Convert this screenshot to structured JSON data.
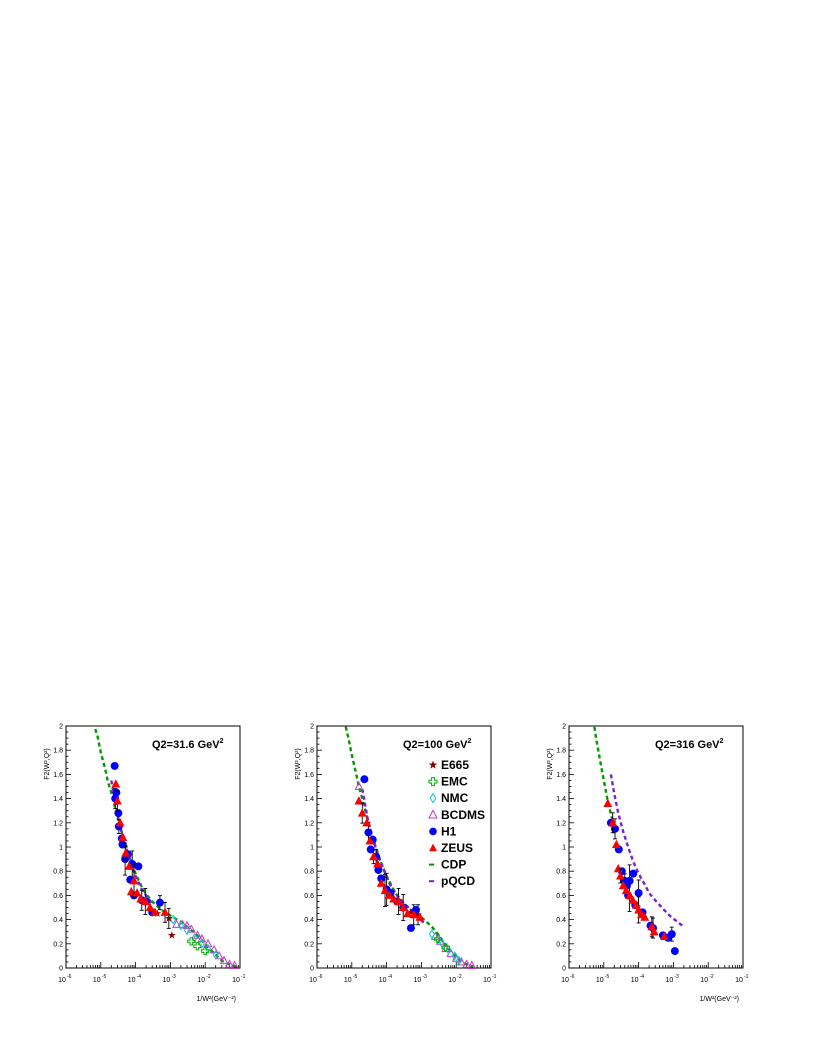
{
  "chart_data": [
    {
      "type": "scatter",
      "title": "Q2=31.6 GeV",
      "title_sup": "2",
      "ylabel": "F2(W²,Q²)",
      "xlabel": "1/W²(GeV⁻²)",
      "x_scale": "log",
      "xlim": [
        1e-06,
        0.1
      ],
      "ylim": [
        0,
        2
      ],
      "y_ticks": [
        "0",
        "0.2",
        "0.4",
        "0.6",
        "0.8",
        "1",
        "1.2",
        "1.4",
        "1.6",
        "1.8",
        "2"
      ],
      "x_ticks": [
        "10-6",
        "10-5",
        "10-4",
        "10-3",
        "10-2",
        "10-1"
      ],
      "series": [
        {
          "name": "H1",
          "marker": "circle",
          "color": "#0000ff",
          "points": [
            [
              2.5e-05,
              1.67
            ],
            [
              2.6e-05,
              1.4
            ],
            [
              2.8e-05,
              1.45
            ],
            [
              3.2e-05,
              1.28
            ],
            [
              3.3e-05,
              1.17
            ],
            [
              4e-05,
              1.07
            ],
            [
              4.2e-05,
              1.02
            ],
            [
              5e-05,
              0.9
            ],
            [
              6e-05,
              0.94
            ],
            [
              7e-05,
              0.73
            ],
            [
              8e-05,
              0.86
            ],
            [
              0.00012,
              0.84
            ],
            [
              9e-05,
              0.6
            ],
            [
              0.00015,
              0.56
            ],
            [
              0.0002,
              0.55
            ],
            [
              0.0003,
              0.46
            ],
            [
              0.0005,
              0.54
            ]
          ]
        },
        {
          "name": "ZEUS",
          "marker": "triangle",
          "color": "#ff0000",
          "points": [
            [
              2.7e-05,
              1.52
            ],
            [
              3e-05,
              1.38
            ],
            [
              3.6e-05,
              1.2
            ],
            [
              4.3e-05,
              1.08
            ],
            [
              5.2e-05,
              0.95
            ],
            [
              6.5e-05,
              0.84
            ],
            [
              7.5e-05,
              0.63
            ],
            [
              9e-05,
              0.72
            ],
            [
              0.00011,
              0.62
            ],
            [
              0.00014,
              0.57
            ],
            [
              0.00019,
              0.55
            ],
            [
              0.00026,
              0.5
            ],
            [
              0.00036,
              0.46
            ],
            [
              0.0007,
              0.46
            ]
          ]
        },
        {
          "name": "E665",
          "marker": "star",
          "color": "#8b0000",
          "points": [
            [
              0.00042,
              0.45
            ],
            [
              0.0009,
              0.41
            ],
            [
              0.0011,
              0.27
            ]
          ]
        },
        {
          "name": "EMC",
          "marker": "cross",
          "color": "#00aa00",
          "points": [
            [
              0.004,
              0.22
            ],
            [
              0.006,
              0.18
            ],
            [
              0.01,
              0.14
            ]
          ]
        },
        {
          "name": "NMC",
          "marker": "diamond",
          "color": "#00cccc",
          "points": [
            [
              0.0012,
              0.4
            ],
            [
              0.002,
              0.35
            ],
            [
              0.003,
              0.31
            ],
            [
              0.005,
              0.25
            ],
            [
              0.008,
              0.2
            ],
            [
              0.012,
              0.16
            ],
            [
              0.02,
              0.11
            ]
          ]
        },
        {
          "name": "BCDMS",
          "marker": "open-triangle",
          "color": "#cc33cc",
          "points": [
            [
              0.0015,
              0.36
            ],
            [
              0.0022,
              0.36
            ],
            [
              0.003,
              0.35
            ],
            [
              0.004,
              0.32
            ],
            [
              0.006,
              0.27
            ],
            [
              0.008,
              0.24
            ],
            [
              0.012,
              0.2
            ],
            [
              0.018,
              0.15
            ],
            [
              0.025,
              0.1
            ],
            [
              0.035,
              0.06
            ],
            [
              0.05,
              0.03
            ],
            [
              0.07,
              0.02
            ]
          ]
        }
      ],
      "cdp_curve": {
        "x": [
          6e-06,
          8e-06,
          1e-05,
          1.3e-05,
          1.6e-05,
          2e-05,
          2.6e-05,
          3.5e-05,
          5e-05,
          7e-05,
          0.0001,
          0.00015,
          0.0002,
          0.0003,
          0.0005,
          0.0008,
          0.0012,
          0.002,
          0.003,
          0.005,
          0.008,
          0.012,
          0.02,
          0.03,
          0.05,
          0.08
        ],
        "y": [
          2.03,
          1.92,
          1.78,
          1.66,
          1.54,
          1.45,
          1.32,
          1.18,
          1.03,
          0.9,
          0.78,
          0.67,
          0.61,
          0.55,
          0.49,
          0.45,
          0.42,
          0.38,
          0.34,
          0.29,
          0.23,
          0.17,
          0.11,
          0.06,
          0.03,
          0.01
        ]
      },
      "pqcd_curve": {
        "x": [
          2e-05,
          2.5e-05,
          3.5e-05,
          5e-05,
          7e-05,
          0.0001,
          0.00015,
          0.0002,
          0.0003
        ],
        "y": [
          1.55,
          1.4,
          1.18,
          1.02,
          0.88,
          0.76,
          0.65,
          0.6,
          0.53
        ]
      }
    },
    {
      "type": "scatter",
      "title": "Q2=100 GeV",
      "title_sup": "2",
      "ylabel": "F2(W²,Q²)",
      "xlabel": "",
      "x_scale": "log",
      "xlim": [
        1e-06,
        0.1
      ],
      "ylim": [
        0,
        2
      ],
      "y_ticks": [
        "0",
        "0.2",
        "0.4",
        "0.6",
        "0.8",
        "1",
        "1.2",
        "1.4",
        "1.6",
        "1.8",
        "2"
      ],
      "x_ticks": [
        "10-6",
        "10-5",
        "10-4",
        "10-3",
        "10-2",
        "10-1"
      ],
      "series": [
        {
          "name": "H1",
          "marker": "circle",
          "color": "#0000ff",
          "points": [
            [
              2.3e-05,
              1.56
            ],
            [
              3e-05,
              1.12
            ],
            [
              3.5e-05,
              0.98
            ],
            [
              4e-05,
              1.06
            ],
            [
              5e-05,
              0.92
            ],
            [
              5.8e-05,
              0.81
            ],
            [
              7e-05,
              0.74
            ],
            [
              0.0001,
              0.65
            ],
            [
              0.00013,
              0.62
            ],
            [
              0.0002,
              0.55
            ],
            [
              0.0003,
              0.5
            ],
            [
              0.0005,
              0.33
            ],
            [
              0.0007,
              0.48
            ]
          ]
        },
        {
          "name": "ZEUS",
          "marker": "triangle",
          "color": "#ff0000",
          "points": [
            [
              1.6e-05,
              1.38
            ],
            [
              2e-05,
              1.28
            ],
            [
              2.7e-05,
              1.2
            ],
            [
              3.3e-05,
              1.05
            ],
            [
              4.2e-05,
              0.92
            ],
            [
              5.5e-05,
              0.86
            ],
            [
              7e-05,
              0.7
            ],
            [
              9e-05,
              0.64
            ],
            [
              0.00012,
              0.6
            ],
            [
              0.00016,
              0.57
            ],
            [
              0.00022,
              0.55
            ],
            [
              0.0003,
              0.5
            ],
            [
              0.0004,
              0.45
            ],
            [
              0.0006,
              0.44
            ],
            [
              0.0009,
              0.42
            ]
          ]
        },
        {
          "name": "E665",
          "marker": "star",
          "color": "#8b0000",
          "points": [
            [
              0.0005,
              0.46
            ],
            [
              0.0008,
              0.44
            ]
          ]
        },
        {
          "name": "EMC",
          "marker": "cross",
          "color": "#00aa00",
          "points": [
            [
              0.003,
              0.24
            ],
            [
              0.005,
              0.17
            ]
          ]
        },
        {
          "name": "NMC",
          "marker": "diamond",
          "color": "#00cccc",
          "points": [
            [
              0.002,
              0.28
            ],
            [
              0.003,
              0.24
            ],
            [
              0.004,
              0.2
            ],
            [
              0.006,
              0.15
            ],
            [
              0.009,
              0.1
            ],
            [
              0.012,
              0.06
            ]
          ]
        },
        {
          "name": "BCDMS",
          "marker": "open-triangle",
          "color": "#cc33cc",
          "points": [
            [
              1.6e-05,
              1.5
            ],
            [
              0.0025,
              0.26
            ],
            [
              0.0035,
              0.22
            ],
            [
              0.005,
              0.16
            ],
            [
              0.007,
              0.12
            ],
            [
              0.01,
              0.08
            ],
            [
              0.014,
              0.05
            ],
            [
              0.02,
              0.03
            ],
            [
              0.028,
              0.02
            ]
          ]
        }
      ],
      "cdp_curve": {
        "x": [
          6e-06,
          8e-06,
          1e-05,
          1.3e-05,
          1.6e-05,
          2e-05,
          2.6e-05,
          3.5e-05,
          5e-05,
          7e-05,
          0.0001,
          0.00015,
          0.0002,
          0.0003,
          0.0005,
          0.0008,
          0.0012,
          0.002,
          0.003,
          0.005,
          0.008,
          0.012,
          0.02,
          0.03
        ],
        "y": [
          2.05,
          1.9,
          1.76,
          1.62,
          1.5,
          1.4,
          1.27,
          1.13,
          0.99,
          0.87,
          0.76,
          0.66,
          0.6,
          0.54,
          0.48,
          0.44,
          0.4,
          0.34,
          0.28,
          0.19,
          0.12,
          0.07,
          0.03,
          0.01
        ]
      },
      "pqcd_curve": {
        "x": [
          2e-05,
          3e-05,
          5e-05,
          8e-05,
          0.00012,
          0.0002,
          0.0003,
          0.0005,
          0.0008,
          0.0012
        ],
        "y": [
          1.48,
          1.2,
          0.98,
          0.82,
          0.7,
          0.6,
          0.54,
          0.48,
          0.42,
          0.37
        ]
      },
      "legend": {
        "placement": "inside-right",
        "entries": [
          {
            "label": "E665",
            "marker": "star",
            "color": "#8b0000"
          },
          {
            "label": "EMC",
            "marker": "cross",
            "color": "#00aa00"
          },
          {
            "label": "NMC",
            "marker": "diamond",
            "color": "#00cccc"
          },
          {
            "label": "BCDMS",
            "marker": "open-triangle",
            "color": "#cc33cc"
          },
          {
            "label": "H1",
            "marker": "circle",
            "color": "#0000ff"
          },
          {
            "label": "ZEUS",
            "marker": "triangle",
            "color": "#ff0000"
          },
          {
            "label": "CDP",
            "marker": "dash",
            "color": "#009900"
          },
          {
            "label": "pQCD",
            "marker": "dash",
            "color": "#7722cc"
          }
        ]
      }
    },
    {
      "type": "scatter",
      "title": "Q2=316 GeV",
      "title_sup": "2",
      "ylabel": "F2(W²,Q²)",
      "xlabel": "1/W²(GeV⁻²)",
      "x_scale": "log",
      "xlim": [
        1e-06,
        0.1
      ],
      "ylim": [
        0,
        2
      ],
      "y_ticks": [
        "0",
        "0.2",
        "0.4",
        "0.6",
        "0.8",
        "1",
        "1.2",
        "1.4",
        "1.6",
        "1.8",
        "2"
      ],
      "x_ticks": [
        "10-6",
        "10-5",
        "10-4",
        "10-3",
        "10-2",
        "10-1"
      ],
      "series": [
        {
          "name": "H1",
          "marker": "circle",
          "color": "#0000ff",
          "points": [
            [
              1.6e-05,
              1.2
            ],
            [
              2.1e-05,
              1.15
            ],
            [
              2.7e-05,
              0.98
            ],
            [
              3.3e-05,
              0.8
            ],
            [
              4e-05,
              0.72
            ],
            [
              4.6e-05,
              0.68
            ],
            [
              5e-05,
              0.6
            ],
            [
              5.5e-05,
              0.72
            ],
            [
              7e-05,
              0.78
            ],
            [
              8e-05,
              0.52
            ],
            [
              0.0001,
              0.62
            ],
            [
              0.00013,
              0.46
            ],
            [
              0.00022,
              0.35
            ],
            [
              0.00026,
              0.33
            ],
            [
              0.0005,
              0.27
            ],
            [
              0.0007,
              0.25
            ],
            [
              0.0009,
              0.28
            ],
            [
              0.0011,
              0.14
            ]
          ]
        },
        {
          "name": "ZEUS",
          "marker": "triangle",
          "color": "#ff0000",
          "points": [
            [
              1.3e-05,
              1.36
            ],
            [
              1.8e-05,
              1.2
            ],
            [
              2.3e-05,
              1.02
            ],
            [
              2.6e-05,
              0.82
            ],
            [
              3e-05,
              0.76
            ],
            [
              3.6e-05,
              0.68
            ],
            [
              4.4e-05,
              0.64
            ],
            [
              5.5e-05,
              0.6
            ],
            [
              6.8e-05,
              0.56
            ],
            [
              8.5e-05,
              0.52
            ],
            [
              0.0001,
              0.48
            ],
            [
              0.00012,
              0.44
            ],
            [
              0.00015,
              0.42
            ],
            [
              0.00024,
              0.34
            ],
            [
              0.00028,
              0.3
            ],
            [
              0.00055,
              0.26
            ]
          ]
        },
        {
          "name": "E665",
          "marker": "star",
          "color": "#8b0000",
          "points": []
        },
        {
          "name": "EMC",
          "marker": "cross",
          "color": "#00aa00",
          "points": []
        },
        {
          "name": "NMC",
          "marker": "diamond",
          "color": "#00cccc",
          "points": []
        },
        {
          "name": "BCDMS",
          "marker": "open-triangle",
          "color": "#cc33cc",
          "points": []
        }
      ],
      "cdp_curve": {
        "x": [
          5e-06,
          6e-06,
          8e-06,
          1e-05,
          1.3e-05,
          1.6e-05,
          2e-05
        ],
        "y": [
          2.05,
          1.9,
          1.7,
          1.55,
          1.38,
          1.27,
          1.18
        ]
      },
      "pqcd_curve": {
        "x": [
          1.6e-05,
          2e-05,
          2.6e-05,
          3.5e-05,
          5e-05,
          7e-05,
          0.0001,
          0.00015,
          0.0002,
          0.0003,
          0.0005,
          0.0008,
          0.0012,
          0.0018
        ],
        "y": [
          1.6,
          1.44,
          1.28,
          1.14,
          1.0,
          0.88,
          0.78,
          0.69,
          0.62,
          0.56,
          0.49,
          0.43,
          0.39,
          0.35
        ]
      }
    }
  ]
}
